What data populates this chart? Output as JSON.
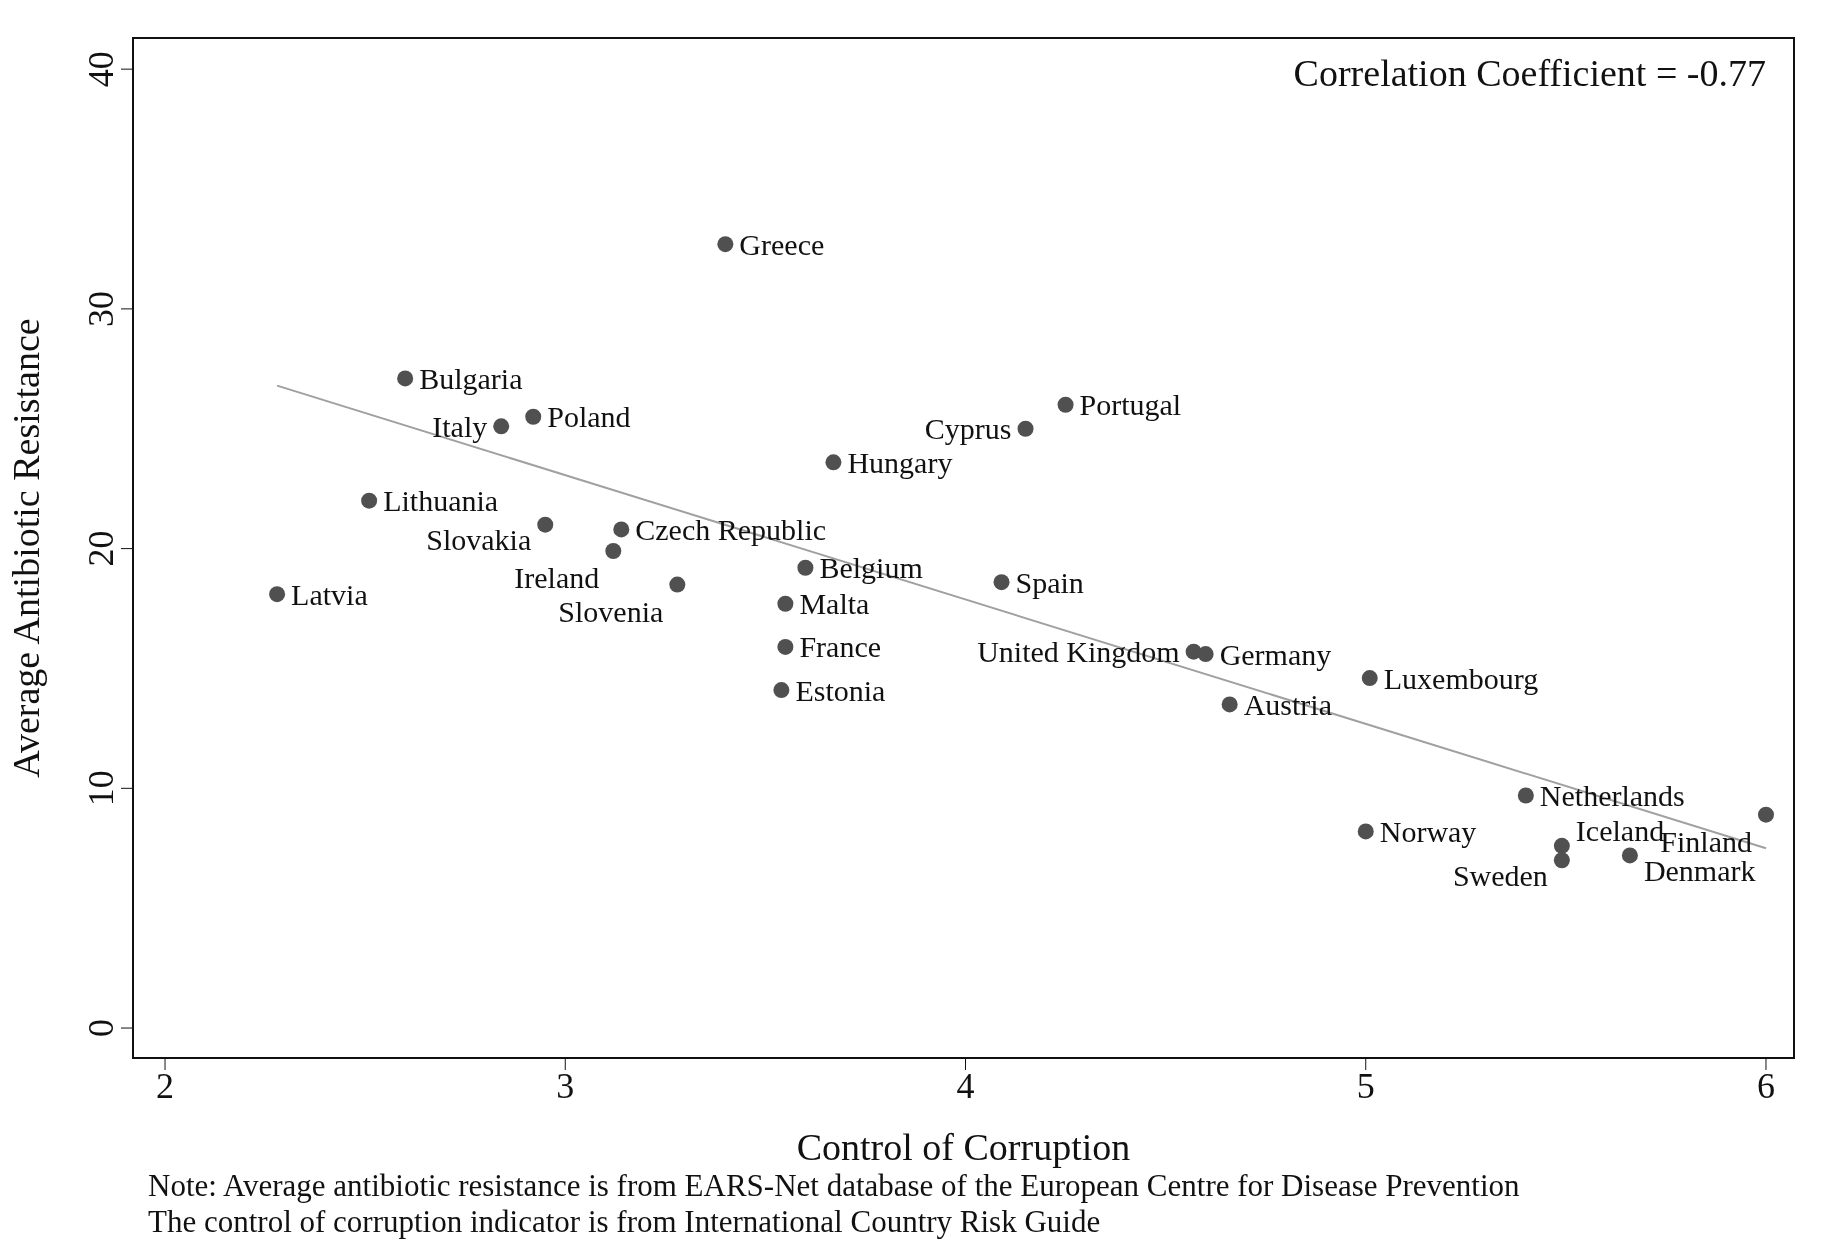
{
  "chart_data": {
    "type": "scatter",
    "xlabel": "Control of Corruption",
    "ylabel": "Average Antibiotic Resistance",
    "xlim": [
      1.92,
      6.07
    ],
    "ylim": [
      -1.25,
      41.3
    ],
    "xticks": [
      2,
      3,
      4,
      5,
      6
    ],
    "yticks": [
      0,
      10,
      20,
      30,
      40
    ],
    "grid": false,
    "legend": false,
    "series": [
      {
        "marker": "circle",
        "color": "#505050",
        "x": [
          3.4,
          2.6,
          2.84,
          2.92,
          2.51,
          2.28,
          2.95,
          3.14,
          3.12,
          3.28,
          3.67,
          4.25,
          4.15,
          3.6,
          3.55,
          3.55,
          3.54,
          4.09,
          4.57,
          4.6,
          4.66,
          5.01,
          5.4,
          5.0,
          5.49,
          5.49,
          5.66,
          6.0
        ],
        "values": [
          32.7,
          27.1,
          25.1,
          25.5,
          22.0,
          18.1,
          21.0,
          20.8,
          19.9,
          18.5,
          23.6,
          26.0,
          25.0,
          19.2,
          17.7,
          15.9,
          14.1,
          18.6,
          15.7,
          15.6,
          13.5,
          14.6,
          9.7,
          8.2,
          7.6,
          7.0,
          7.2,
          8.9
        ]
      },
      {
        "type": "line",
        "marker": "none",
        "color": "#a0a0a0",
        "x": [
          2.28,
          6.0
        ],
        "values": [
          26.8,
          7.5
        ]
      }
    ],
    "annotations": [
      "Correlation Coefficient = -0.77",
      "Note: Average antibiotic resistance is from EARS-Net database of the European Centre for Disease Prevention",
      "The control of corruption indicator is from International Country Risk Guide",
      {
        "text": "Greece",
        "x": 3.4,
        "y": 32.7
      },
      {
        "text": "Bulgaria",
        "x": 2.6,
        "y": 27.1
      },
      {
        "text": "Italy",
        "x": 2.84,
        "y": 25.1
      },
      {
        "text": "Poland",
        "x": 2.92,
        "y": 25.5
      },
      {
        "text": "Lithuania",
        "x": 2.51,
        "y": 22.0
      },
      {
        "text": "Latvia",
        "x": 2.28,
        "y": 18.1
      },
      {
        "text": "Slovakia",
        "x": 2.95,
        "y": 21.0
      },
      {
        "text": "Czech Republic",
        "x": 3.14,
        "y": 20.8
      },
      {
        "text": "Ireland",
        "x": 3.12,
        "y": 19.9
      },
      {
        "text": "Slovenia",
        "x": 3.28,
        "y": 18.5
      },
      {
        "text": "Hungary",
        "x": 3.67,
        "y": 23.6
      },
      {
        "text": "Portugal",
        "x": 4.25,
        "y": 26.0
      },
      {
        "text": "Cyprus",
        "x": 4.15,
        "y": 25.0
      },
      {
        "text": "Belgium",
        "x": 3.6,
        "y": 19.2
      },
      {
        "text": "Malta",
        "x": 3.55,
        "y": 17.7
      },
      {
        "text": "France",
        "x": 3.55,
        "y": 15.9
      },
      {
        "text": "Estonia",
        "x": 3.54,
        "y": 14.1
      },
      {
        "text": "Spain",
        "x": 4.09,
        "y": 18.6
      },
      {
        "text": "United Kingdom",
        "x": 4.57,
        "y": 15.7
      },
      {
        "text": "Germany",
        "x": 4.6,
        "y": 15.6
      },
      {
        "text": "Austria",
        "x": 4.66,
        "y": 13.5
      },
      {
        "text": "Luxembourg",
        "x": 5.01,
        "y": 14.6
      },
      {
        "text": "Netherlands",
        "x": 5.4,
        "y": 9.7
      },
      {
        "text": "Norway",
        "x": 5.0,
        "y": 8.2
      },
      {
        "text": "Iceland",
        "x": 5.49,
        "y": 7.6
      },
      {
        "text": "Sweden",
        "x": 5.49,
        "y": 7.0
      },
      {
        "text": "Denmark",
        "x": 5.66,
        "y": 7.2
      },
      {
        "text": "Finland",
        "x": 6.0,
        "y": 8.9
      }
    ]
  }
}
